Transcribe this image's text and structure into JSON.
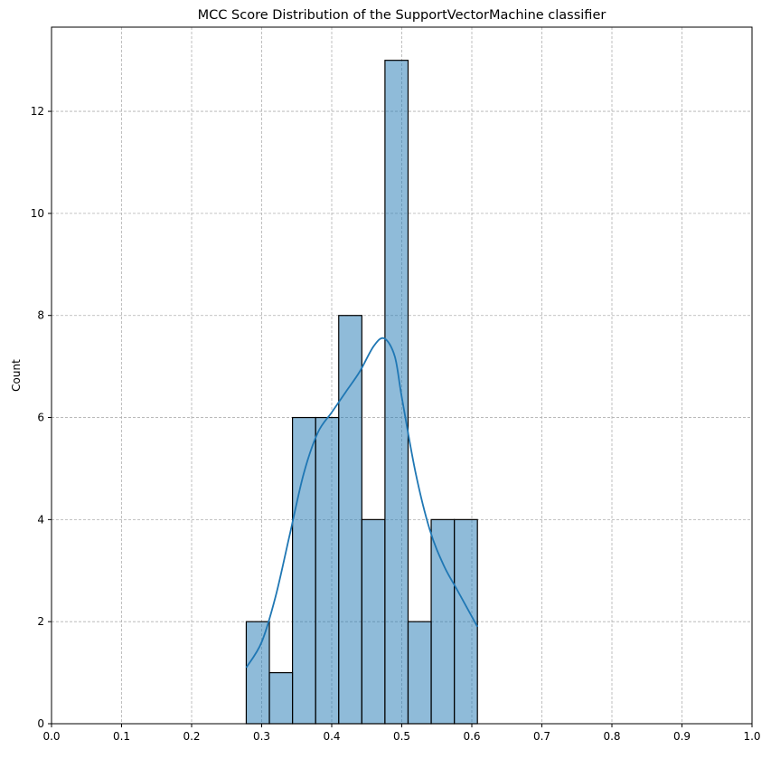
{
  "chart_data": {
    "type": "bar",
    "title": "MCC Score Distribution of the SupportVectorMachine classifier",
    "xlabel": "",
    "ylabel": "Count",
    "xlim": [
      0.0,
      1.0
    ],
    "ylim": [
      0,
      13.65
    ],
    "x_ticks": [
      "0.0",
      "0.1",
      "0.2",
      "0.3",
      "0.4",
      "0.5",
      "0.6",
      "0.7",
      "0.8",
      "0.9",
      "1.0"
    ],
    "y_ticks": [
      "0",
      "2",
      "4",
      "6",
      "8",
      "10",
      "12"
    ],
    "x_tick_values": [
      0.0,
      0.1,
      0.2,
      0.3,
      0.4,
      0.5,
      0.6,
      0.7,
      0.8,
      0.9,
      1.0
    ],
    "y_tick_values": [
      0,
      2,
      4,
      6,
      8,
      10,
      12
    ],
    "grid": true,
    "bar_color": "#1f77b4",
    "kde_color": "#1f77b4",
    "bins": [
      {
        "start": 0.278,
        "end": 0.311,
        "count": 2
      },
      {
        "start": 0.311,
        "end": 0.344,
        "count": 1
      },
      {
        "start": 0.344,
        "end": 0.377,
        "count": 6
      },
      {
        "start": 0.377,
        "end": 0.41,
        "count": 6
      },
      {
        "start": 0.41,
        "end": 0.443,
        "count": 8
      },
      {
        "start": 0.443,
        "end": 0.476,
        "count": 4
      },
      {
        "start": 0.476,
        "end": 0.509,
        "count": 13
      },
      {
        "start": 0.509,
        "end": 0.542,
        "count": 2
      },
      {
        "start": 0.542,
        "end": 0.575,
        "count": 4
      },
      {
        "start": 0.575,
        "end": 0.608,
        "count": 4
      }
    ],
    "kde": {
      "x": [
        0.278,
        0.3,
        0.32,
        0.34,
        0.36,
        0.38,
        0.4,
        0.42,
        0.44,
        0.46,
        0.475,
        0.49,
        0.5,
        0.52,
        0.54,
        0.56,
        0.58,
        0.608
      ],
      "y": [
        1.1,
        1.6,
        2.5,
        3.7,
        4.9,
        5.7,
        6.1,
        6.5,
        6.9,
        7.4,
        7.55,
        7.2,
        6.4,
        4.9,
        3.8,
        3.1,
        2.6,
        1.9
      ]
    }
  }
}
